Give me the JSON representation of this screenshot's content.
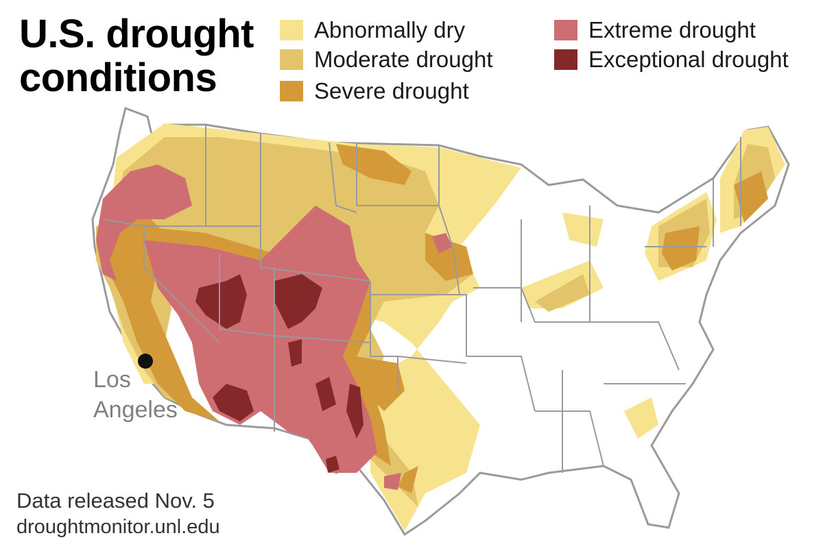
{
  "title": "U.S. drought conditions",
  "legend": [
    {
      "label": "Abnormally dry",
      "color": "#f7e38d"
    },
    {
      "label": "Moderate drought",
      "color": "#e3c46a"
    },
    {
      "label": "Severe drought",
      "color": "#d49a3a"
    },
    {
      "label": "Extreme drought",
      "color": "#cf6e72"
    },
    {
      "label": "Exceptional drought",
      "color": "#85282a"
    }
  ],
  "city": {
    "line1": "Los",
    "line2": "Angeles"
  },
  "source": {
    "line1": "Data released Nov. 5",
    "line2": "droughtmonitor.unl.edu"
  },
  "colors": {
    "background": "#ffffff",
    "state_border": "#9a9a9a",
    "city_marker": "#111111",
    "city_label": "#808080"
  }
}
